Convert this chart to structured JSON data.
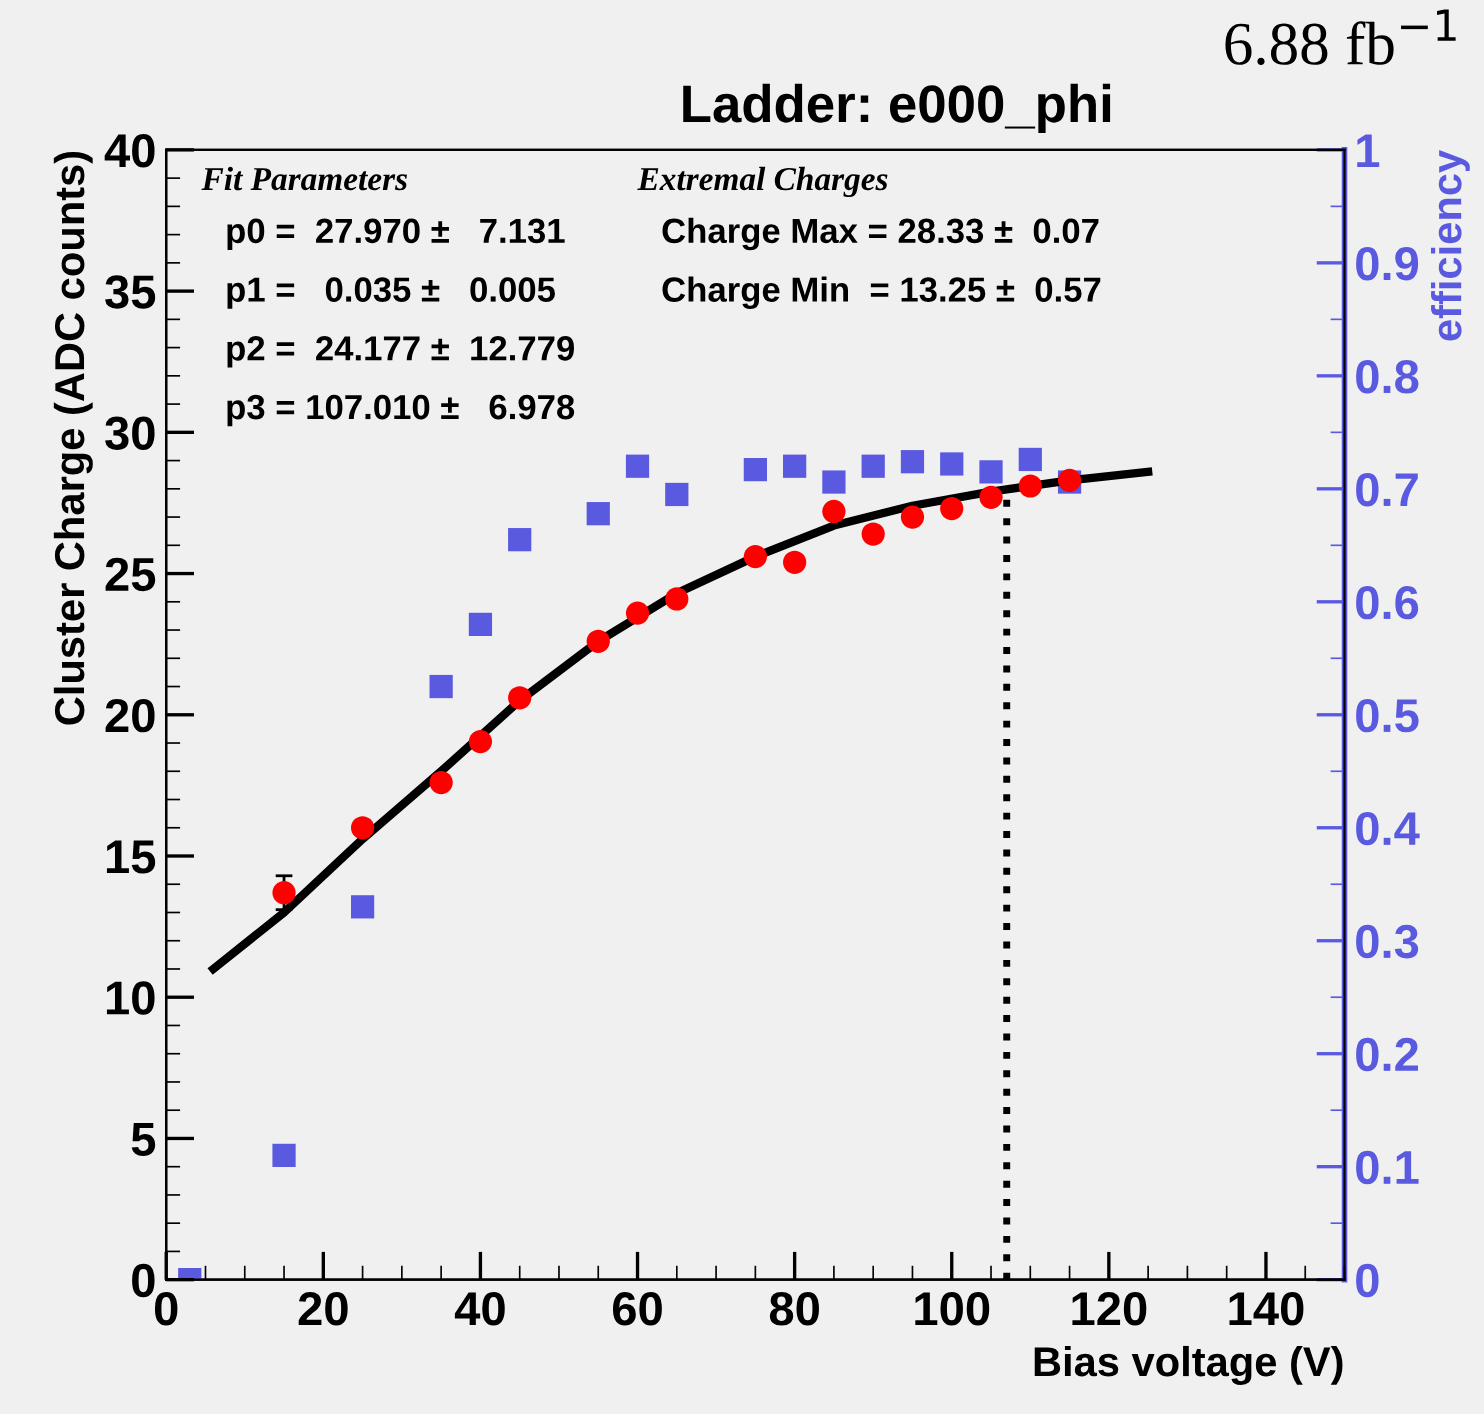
{
  "chart_data": {
    "type": "scatter",
    "title": "Ladder: e000_phi",
    "subtitle": "6.88 fb$^{−1}$",
    "xlabel": "Bias voltage (V)",
    "ylabel": "Cluster Charge (ADC counts)",
    "y2label": "efficiency",
    "xlim": [
      0,
      150
    ],
    "xticks": [
      0,
      20,
      40,
      60,
      80,
      100,
      120,
      140
    ],
    "ylim": [
      0,
      40
    ],
    "yticks": [
      0,
      5,
      10,
      15,
      20,
      25,
      30,
      35,
      40
    ],
    "y2lim": [
      0,
      1
    ],
    "y2ticks": [
      0,
      0.1,
      0.2,
      0.3,
      0.4,
      0.5,
      0.6,
      0.7,
      0.8,
      0.9,
      1
    ],
    "grid": false,
    "legend": false,
    "series": [
      {
        "marker": "circle",
        "color": "#ff0000",
        "x": [
          15,
          25,
          35,
          40,
          45,
          55,
          60,
          65,
          75,
          80,
          85,
          90,
          95,
          100,
          105,
          110,
          115
        ],
        "values": [
          13.7,
          16.0,
          17.6,
          19.05,
          20.6,
          22.6,
          23.6,
          24.1,
          25.6,
          25.4,
          27.2,
          26.4,
          27.0,
          27.3,
          27.7,
          28.1,
          28.3
        ],
        "errors": [
          0.6,
          null,
          null,
          null,
          null,
          null,
          null,
          null,
          null,
          null,
          null,
          null,
          null,
          null,
          null,
          null,
          null
        ]
      },
      {
        "type": "line",
        "marker": "none",
        "line_style": "solid",
        "color": "#000000",
        "x": [
          6,
          15,
          25,
          35,
          45,
          55,
          65,
          75,
          85,
          95,
          105,
          115,
          125
        ],
        "values": [
          11.0,
          13.0,
          15.6,
          18.0,
          20.5,
          22.6,
          24.3,
          25.6,
          26.7,
          27.4,
          27.9,
          28.3,
          28.6
        ]
      },
      {
        "marker": "square",
        "color": "#5a5ae0",
        "axis": "y2",
        "x": [
          3,
          15,
          25,
          35,
          40,
          45,
          55,
          60,
          65,
          75,
          80,
          85,
          90,
          95,
          100,
          105,
          110,
          115
        ],
        "values": [
          0.0,
          0.11,
          0.33,
          0.525,
          0.58,
          0.655,
          0.678,
          0.72,
          0.695,
          0.717,
          0.72,
          0.706,
          0.72,
          0.724,
          0.722,
          0.715,
          0.726,
          0.706
        ]
      }
    ],
    "ref_lines": [
      {
        "axis": "x",
        "value": 107,
        "label": null,
        "color": "#000000",
        "line_style": "dotted"
      }
    ],
    "annotations": [
      "Fit Parameters",
      "p0 =  27.970 ±   7.131",
      "p1 =   0.035 ±   0.005",
      "p2 =  24.177 ±  12.779",
      "p3 = 107.010 ±   6.978",
      "Extremal Charges",
      "Charge Max = 28.33 ±  0.07",
      "Charge Min  = 13.25 ±  0.57"
    ]
  }
}
